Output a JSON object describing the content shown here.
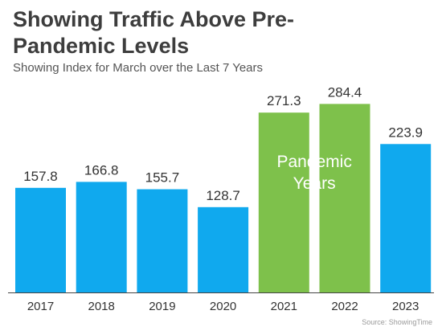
{
  "header": {
    "title": "Showing Traffic Above Pre-Pandemic Levels",
    "subtitle": "Showing Index for March over the Last 7 Years"
  },
  "annotation": {
    "line1": "Pandemic",
    "line2": "Years"
  },
  "source": "Source: ShowingTime",
  "colors": {
    "normal": "#10a9ee",
    "pandemic": "#7ec14b",
    "text": "#333333",
    "annotation": "#ffffff"
  },
  "chart_data": {
    "type": "bar",
    "title": "Showing Traffic Above Pre-Pandemic Levels",
    "subtitle": "Showing Index for March over the Last 7 Years",
    "categories": [
      "2017",
      "2018",
      "2019",
      "2020",
      "2021",
      "2022",
      "2023"
    ],
    "values": [
      157.8,
      166.8,
      155.7,
      128.7,
      271.3,
      284.4,
      223.9
    ],
    "value_labels": [
      "157.8",
      "166.8",
      "155.7",
      "128.7",
      "271.3",
      "284.4",
      "223.9"
    ],
    "highlighted": [
      false,
      false,
      false,
      false,
      true,
      true,
      false
    ],
    "xlabel": "",
    "ylabel": "",
    "grid": false
  }
}
